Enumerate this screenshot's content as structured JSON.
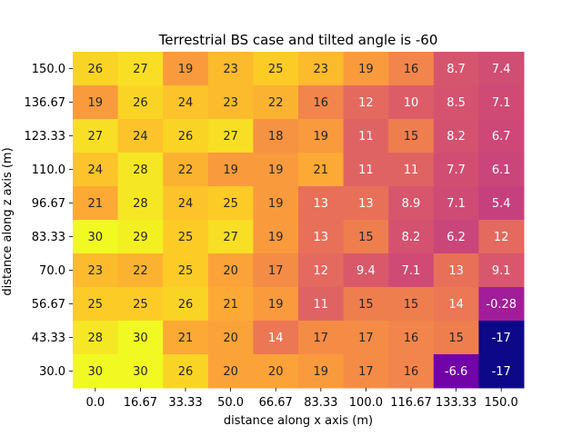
{
  "chart_data": {
    "type": "heatmap",
    "title": "Terrestrial BS case and tilted angle is -60",
    "xlabel": "distance along x axis (m)",
    "ylabel": "distance along z axis (m)",
    "x_categories": [
      "0.0",
      "16.67",
      "33.33",
      "50.0",
      "66.67",
      "83.33",
      "100.0",
      "116.67",
      "133.33",
      "150.0"
    ],
    "y_categories": [
      "150.0",
      "136.67",
      "123.33",
      "110.0",
      "96.67",
      "83.33",
      "70.0",
      "56.67",
      "43.33",
      "30.0"
    ],
    "values": [
      [
        26,
        27,
        19,
        23,
        25,
        23,
        19,
        16,
        8.7,
        7.4
      ],
      [
        19,
        26,
        24,
        23,
        22,
        16,
        12,
        10,
        8.5,
        7.1
      ],
      [
        27,
        24,
        26,
        27,
        18,
        19,
        11,
        15,
        8.2,
        6.7
      ],
      [
        24,
        28,
        22,
        19,
        19,
        21,
        11,
        11,
        7.7,
        6.1
      ],
      [
        21,
        28,
        24,
        25,
        19,
        13,
        13,
        8.9,
        7.1,
        5.4
      ],
      [
        30,
        29,
        25,
        27,
        19,
        13,
        15,
        8.2,
        6.2,
        12
      ],
      [
        23,
        22,
        25,
        20,
        17,
        12,
        9.4,
        7.1,
        13,
        9.1
      ],
      [
        25,
        25,
        26,
        21,
        19,
        11,
        15,
        15,
        14,
        -0.28
      ],
      [
        28,
        30,
        21,
        20,
        14,
        17,
        17,
        16,
        15,
        -17
      ],
      [
        30,
        30,
        26,
        20,
        20,
        19,
        17,
        16,
        -6.6,
        -17
      ]
    ],
    "value_labels": [
      [
        "26",
        "27",
        "19",
        "23",
        "25",
        "23",
        "19",
        "16",
        "8.7",
        "7.4"
      ],
      [
        "19",
        "26",
        "24",
        "23",
        "22",
        "16",
        "12",
        "10",
        "8.5",
        "7.1"
      ],
      [
        "27",
        "24",
        "26",
        "27",
        "18",
        "19",
        "11",
        "15",
        "8.2",
        "6.7"
      ],
      [
        "24",
        "28",
        "22",
        "19",
        "19",
        "21",
        "11",
        "11",
        "7.7",
        "6.1"
      ],
      [
        "21",
        "28",
        "24",
        "25",
        "19",
        "13",
        "13",
        "8.9",
        "7.1",
        "5.4"
      ],
      [
        "30",
        "29",
        "25",
        "27",
        "19",
        "13",
        "15",
        "8.2",
        "6.2",
        "12"
      ],
      [
        "23",
        "22",
        "25",
        "20",
        "17",
        "12",
        "9.4",
        "7.1",
        "13",
        "9.1"
      ],
      [
        "25",
        "25",
        "26",
        "21",
        "19",
        "11",
        "15",
        "15",
        "14",
        "-0.28"
      ],
      [
        "28",
        "30",
        "21",
        "20",
        "14",
        "17",
        "17",
        "16",
        "15",
        "-17"
      ],
      [
        "30",
        "30",
        "26",
        "20",
        "20",
        "19",
        "17",
        "16",
        "-6.6",
        "-17"
      ]
    ],
    "colormap": "plasma",
    "vmin": -17,
    "vmax": 30,
    "colorbar": false,
    "grid": false
  }
}
